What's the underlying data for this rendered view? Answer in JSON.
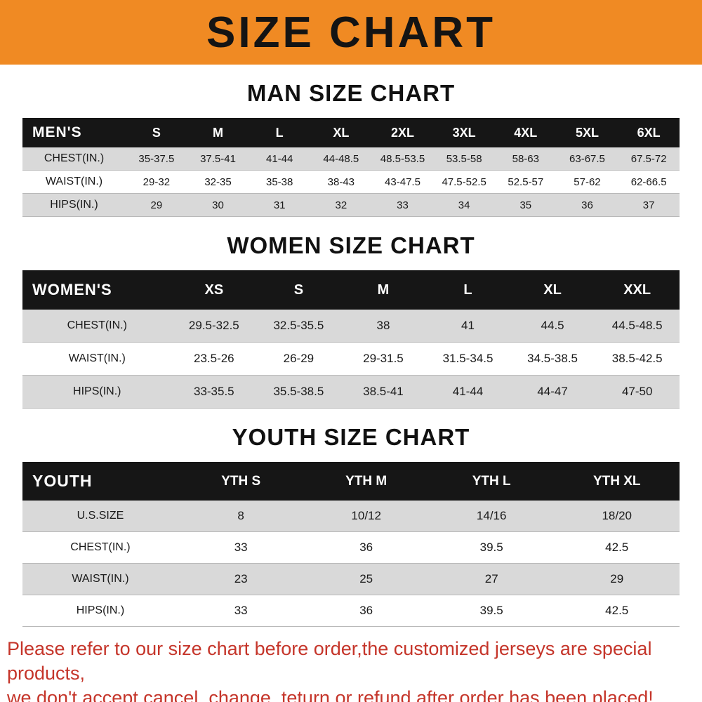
{
  "banner": {
    "title": "SIZE CHART"
  },
  "footer": {
    "line1": "Please refer to our size chart before order,the customized jerseys are special products,",
    "line2": "we don't accept cancel, change, teturn or refund after order has been placed!"
  },
  "colors": {
    "banner_bg": "#f08a23",
    "table_header_bg": "#161616",
    "row_alt_bg": "#d9d9d9",
    "footer_text": "#c5352a"
  },
  "chart_data": [
    {
      "type": "table",
      "title": "MAN SIZE CHART",
      "header": [
        "MEN'S",
        "S",
        "M",
        "L",
        "XL",
        "2XL",
        "3XL",
        "4XL",
        "5XL",
        "6XL"
      ],
      "rows": [
        [
          "CHEST(IN.)",
          "35-37.5",
          "37.5-41",
          "41-44",
          "44-48.5",
          "48.5-53.5",
          "53.5-58",
          "58-63",
          "63-67.5",
          "67.5-72"
        ],
        [
          "WAIST(IN.)",
          "29-32",
          "32-35",
          "35-38",
          "38-43",
          "43-47.5",
          "47.5-52.5",
          "52.5-57",
          "57-62",
          "62-66.5"
        ],
        [
          "HIPS(IN.)",
          "29",
          "30",
          "31",
          "32",
          "33",
          "34",
          "35",
          "36",
          "37"
        ]
      ]
    },
    {
      "type": "table",
      "title": "WOMEN SIZE CHART",
      "header": [
        "WOMEN'S",
        "XS",
        "S",
        "M",
        "L",
        "XL",
        "XXL"
      ],
      "rows": [
        [
          "CHEST(IN.)",
          "29.5-32.5",
          "32.5-35.5",
          "38",
          "41",
          "44.5",
          "44.5-48.5"
        ],
        [
          "WAIST(IN.)",
          "23.5-26",
          "26-29",
          "29-31.5",
          "31.5-34.5",
          "34.5-38.5",
          "38.5-42.5"
        ],
        [
          "HIPS(IN.)",
          "33-35.5",
          "35.5-38.5",
          "38.5-41",
          "41-44",
          "44-47",
          "47-50"
        ]
      ]
    },
    {
      "type": "table",
      "title": "YOUTH SIZE CHART",
      "header": [
        "YOUTH",
        "YTH S",
        "YTH M",
        "YTH L",
        "YTH XL"
      ],
      "rows": [
        [
          "U.S.SIZE",
          "8",
          "10/12",
          "14/16",
          "18/20"
        ],
        [
          "CHEST(IN.)",
          "33",
          "36",
          "39.5",
          "42.5"
        ],
        [
          "WAIST(IN.)",
          "23",
          "25",
          "27",
          "29"
        ],
        [
          "HIPS(IN.)",
          "33",
          "36",
          "39.5",
          "42.5"
        ]
      ]
    }
  ]
}
